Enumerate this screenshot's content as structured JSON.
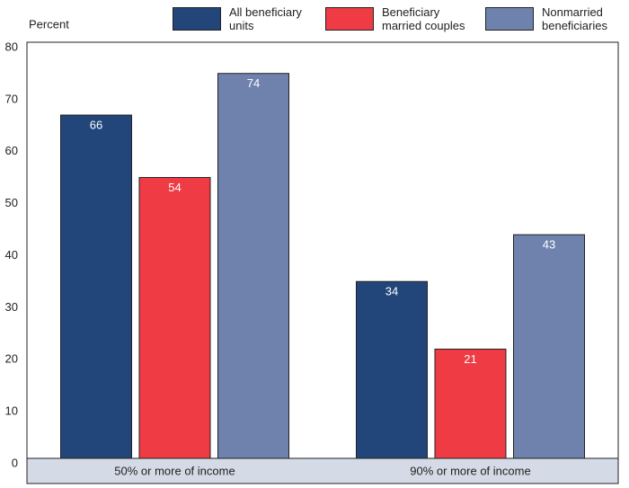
{
  "chart_data": {
    "type": "bar",
    "y_label": "Percent",
    "categories": [
      "50% or more of income",
      "90% or more of income"
    ],
    "series": [
      {
        "name": "All beneficiary units",
        "color": "#22467a",
        "values": [
          66,
          34
        ]
      },
      {
        "name": "Beneficiary married couples",
        "color": "#ef3b44",
        "values": [
          54,
          21
        ]
      },
      {
        "name": "Nonmarried beneficiaries",
        "color": "#6e82ad",
        "values": [
          74,
          43
        ]
      }
    ],
    "ylim": [
      0,
      80
    ],
    "yticks": [
      0,
      10,
      20,
      30,
      40,
      50,
      60,
      70,
      80
    ],
    "legend": "top",
    "value_labels_inside": true
  }
}
